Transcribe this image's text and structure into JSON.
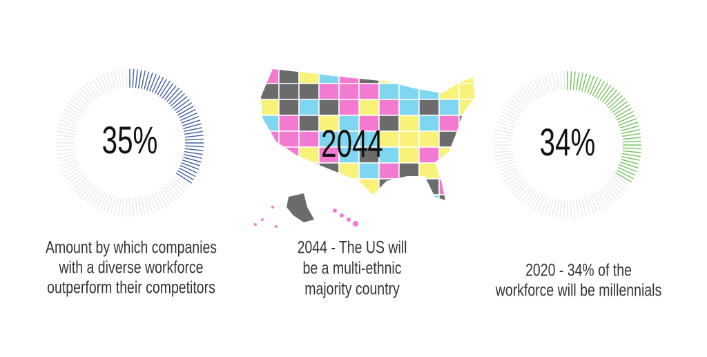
{
  "stats": [
    {
      "label": "35%",
      "value": 35,
      "color": "#3d5c9e",
      "caption": [
        "Amount by which companies",
        "with a diverse workforce",
        "outperform their competitors"
      ]
    },
    {
      "label": "2044",
      "caption": [
        "2044 - The US will",
        "be a multi-ethnic",
        "majority country"
      ]
    },
    {
      "label": "34%",
      "value": 34,
      "color": "#72c25a",
      "caption": [
        "2020 - 34% of the",
        "workforce will be millennials"
      ]
    }
  ]
}
